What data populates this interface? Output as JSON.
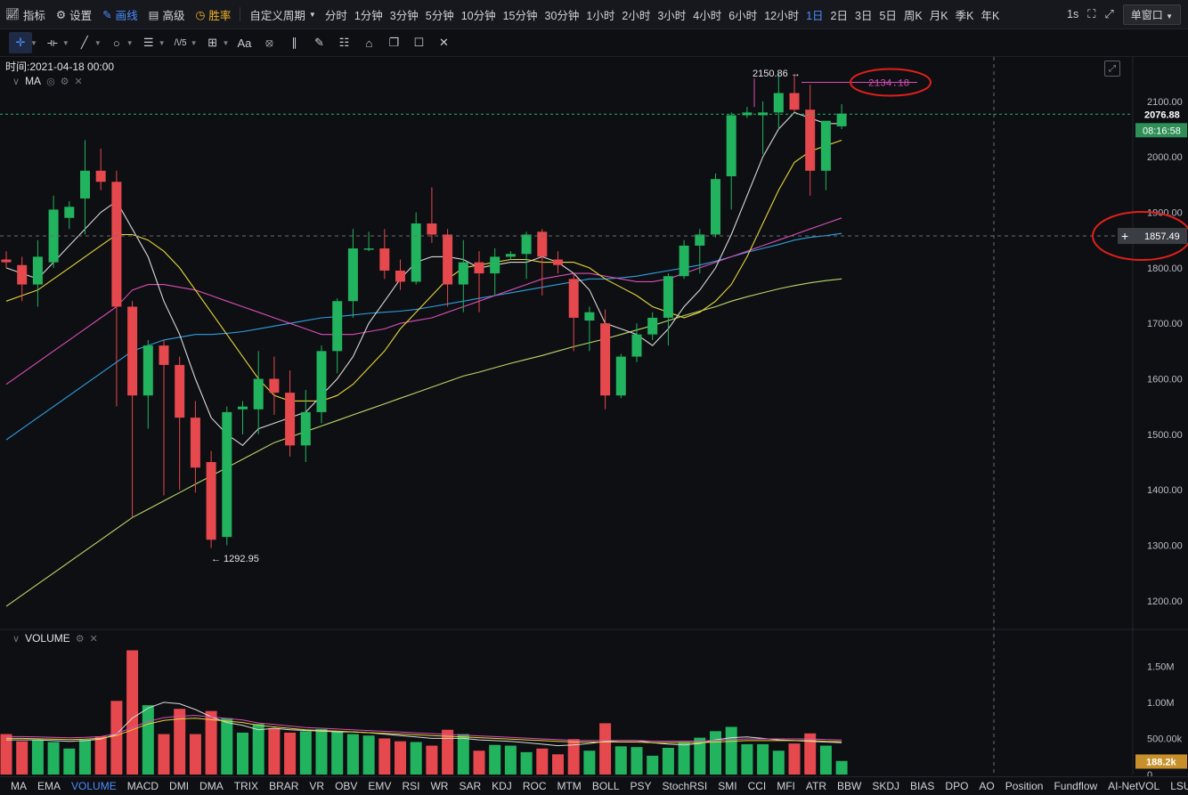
{
  "topbar": {
    "indicators_label": "指标",
    "settings_label": "设置",
    "draw_label": "画线",
    "advanced_label": "高级",
    "winrate_label": "胜率",
    "custom_period_label": "自定义周期",
    "periods": [
      "分时",
      "1分钟",
      "3分钟",
      "5分钟",
      "10分钟",
      "15分钟",
      "30分钟",
      "1小时",
      "2小时",
      "3小时",
      "4小时",
      "6小时",
      "12小时",
      "1日",
      "2日",
      "3日",
      "5日",
      "周K",
      "月K",
      "季K",
      "年K"
    ],
    "active_period": "1日",
    "interval_label": "1s",
    "window_mode_label": "单窗口"
  },
  "toolbar2": {
    "icons": [
      "crosshair-icon",
      "horizontal-line-icon",
      "trend-line-icon",
      "shape-circle-icon",
      "fib-icon",
      "wave-icon",
      "measure-icon",
      "text-icon",
      "magnet-icon",
      "ruler-icon",
      "brush-icon",
      "visibility-icon",
      "lock-icon",
      "copy-icon",
      "screenshot-icon",
      "trash-icon"
    ],
    "text_tool_label": "Aa",
    "wave_tool_label": "/\\/5"
  },
  "main": {
    "time_label": "时间:2021-04-18 00:00",
    "pane_label": "MA",
    "high_label": "2150.86 →",
    "low_label": "← 1292.95",
    "annotation_value": "2134.18",
    "current_price": "2076.88",
    "countdown": "08:16:58",
    "crosshair_price": "1857.49",
    "price_ticks": [
      "2100.00",
      "2000.00",
      "1900.00",
      "1800.00",
      "1700.00",
      "1600.00",
      "1500.00",
      "1400.00",
      "1300.00",
      "1200.00"
    ],
    "colors": {
      "up": "#22b35e",
      "down": "#e5484d",
      "ma5": "#d9d9d9",
      "ma10": "#e8d53a",
      "ma20": "#d94fb5",
      "ma30": "#2fa0e0",
      "ma60": "#b8d96b",
      "annotation": "#e0201a"
    }
  },
  "volume": {
    "pane_label": "VOLUME",
    "ticks": [
      "1.50M",
      "1.00M",
      "500.00k",
      "0"
    ],
    "current_value": "188.2k",
    "current_color": "#c8902a"
  },
  "bottombar": {
    "indicators": [
      "MA",
      "EMA",
      "VOLUME",
      "MACD",
      "DMI",
      "DMA",
      "TRIX",
      "BRAR",
      "VR",
      "OBV",
      "EMV",
      "RSI",
      "WR",
      "SAR",
      "KDJ",
      "ROC",
      "MTM",
      "BOLL",
      "PSY",
      "StochRSI",
      "SMI",
      "CCI",
      "MFI",
      "ATR",
      "BBW",
      "SKDJ",
      "BIAS",
      "DPO",
      "AO",
      "Position",
      "Fundflow",
      "AI-NetVOL",
      "LSUR"
    ],
    "active": "VOLUME"
  },
  "chart_data": {
    "type": "candlestick",
    "ylim": [
      1150,
      2180
    ],
    "volume_ylim": [
      0,
      1800000
    ],
    "candles": [
      {
        "o": 1815,
        "h": 1830,
        "l": 1800,
        "c": 1810,
        "v": 560000
      },
      {
        "o": 1805,
        "h": 1820,
        "l": 1740,
        "c": 1770,
        "v": 460000
      },
      {
        "o": 1770,
        "h": 1850,
        "l": 1730,
        "c": 1820,
        "v": 480000
      },
      {
        "o": 1810,
        "h": 1930,
        "l": 1800,
        "c": 1905,
        "v": 450000
      },
      {
        "o": 1890,
        "h": 1920,
        "l": 1870,
        "c": 1910,
        "v": 360000
      },
      {
        "o": 1925,
        "h": 2030,
        "l": 1860,
        "c": 1975,
        "v": 480000
      },
      {
        "o": 1975,
        "h": 2015,
        "l": 1940,
        "c": 1955,
        "v": 530000
      },
      {
        "o": 1955,
        "h": 1975,
        "l": 1550,
        "c": 1730,
        "v": 1020000
      },
      {
        "o": 1730,
        "h": 1740,
        "l": 1350,
        "c": 1570,
        "v": 1720000
      },
      {
        "o": 1570,
        "h": 1670,
        "l": 1510,
        "c": 1660,
        "v": 960000
      },
      {
        "o": 1660,
        "h": 1670,
        "l": 1390,
        "c": 1625,
        "v": 560000
      },
      {
        "o": 1625,
        "h": 1640,
        "l": 1400,
        "c": 1530,
        "v": 910000
      },
      {
        "o": 1530,
        "h": 1560,
        "l": 1395,
        "c": 1440,
        "v": 560000
      },
      {
        "o": 1450,
        "h": 1470,
        "l": 1295,
        "c": 1310,
        "v": 880000
      },
      {
        "o": 1315,
        "h": 1550,
        "l": 1300,
        "c": 1540,
        "v": 780000
      },
      {
        "o": 1545,
        "h": 1560,
        "l": 1500,
        "c": 1550,
        "v": 580000
      },
      {
        "o": 1545,
        "h": 1650,
        "l": 1500,
        "c": 1600,
        "v": 700000
      },
      {
        "o": 1600,
        "h": 1640,
        "l": 1535,
        "c": 1575,
        "v": 640000
      },
      {
        "o": 1575,
        "h": 1615,
        "l": 1460,
        "c": 1480,
        "v": 580000
      },
      {
        "o": 1480,
        "h": 1580,
        "l": 1450,
        "c": 1540,
        "v": 600000
      },
      {
        "o": 1540,
        "h": 1660,
        "l": 1520,
        "c": 1650,
        "v": 630000
      },
      {
        "o": 1650,
        "h": 1745,
        "l": 1610,
        "c": 1740,
        "v": 590000
      },
      {
        "o": 1740,
        "h": 1870,
        "l": 1710,
        "c": 1835,
        "v": 560000
      },
      {
        "o": 1835,
        "h": 1865,
        "l": 1830,
        "c": 1835,
        "v": 540000
      },
      {
        "o": 1835,
        "h": 1870,
        "l": 1780,
        "c": 1795,
        "v": 500000
      },
      {
        "o": 1795,
        "h": 1815,
        "l": 1760,
        "c": 1775,
        "v": 460000
      },
      {
        "o": 1775,
        "h": 1900,
        "l": 1770,
        "c": 1880,
        "v": 450000
      },
      {
        "o": 1880,
        "h": 1945,
        "l": 1845,
        "c": 1860,
        "v": 400000
      },
      {
        "o": 1860,
        "h": 1870,
        "l": 1730,
        "c": 1770,
        "v": 620000
      },
      {
        "o": 1770,
        "h": 1850,
        "l": 1720,
        "c": 1810,
        "v": 560000
      },
      {
        "o": 1810,
        "h": 1830,
        "l": 1720,
        "c": 1790,
        "v": 330000
      },
      {
        "o": 1790,
        "h": 1835,
        "l": 1750,
        "c": 1820,
        "v": 410000
      },
      {
        "o": 1820,
        "h": 1830,
        "l": 1815,
        "c": 1825,
        "v": 400000
      },
      {
        "o": 1825,
        "h": 1865,
        "l": 1780,
        "c": 1860,
        "v": 310000
      },
      {
        "o": 1865,
        "h": 1870,
        "l": 1750,
        "c": 1820,
        "v": 360000
      },
      {
        "o": 1815,
        "h": 1830,
        "l": 1790,
        "c": 1805,
        "v": 280000
      },
      {
        "o": 1780,
        "h": 1790,
        "l": 1650,
        "c": 1710,
        "v": 490000
      },
      {
        "o": 1705,
        "h": 1730,
        "l": 1650,
        "c": 1720,
        "v": 330000
      },
      {
        "o": 1700,
        "h": 1725,
        "l": 1545,
        "c": 1570,
        "v": 710000
      },
      {
        "o": 1570,
        "h": 1645,
        "l": 1565,
        "c": 1640,
        "v": 390000
      },
      {
        "o": 1640,
        "h": 1700,
        "l": 1630,
        "c": 1680,
        "v": 380000
      },
      {
        "o": 1680,
        "h": 1720,
        "l": 1670,
        "c": 1710,
        "v": 260000
      },
      {
        "o": 1710,
        "h": 1790,
        "l": 1660,
        "c": 1785,
        "v": 370000
      },
      {
        "o": 1785,
        "h": 1850,
        "l": 1780,
        "c": 1840,
        "v": 450000
      },
      {
        "o": 1840,
        "h": 1870,
        "l": 1790,
        "c": 1860,
        "v": 510000
      },
      {
        "o": 1860,
        "h": 1970,
        "l": 1855,
        "c": 1960,
        "v": 600000
      },
      {
        "o": 1965,
        "h": 2080,
        "l": 1905,
        "c": 2075,
        "v": 660000
      },
      {
        "o": 2075,
        "h": 2090,
        "l": 2070,
        "c": 2080,
        "v": 420000
      },
      {
        "o": 2075,
        "h": 2100,
        "l": 2005,
        "c": 2080,
        "v": 420000
      },
      {
        "o": 2080,
        "h": 2150,
        "l": 2050,
        "c": 2115,
        "v": 330000
      },
      {
        "o": 2115,
        "h": 2150,
        "l": 2080,
        "c": 2085,
        "v": 430000
      },
      {
        "o": 2085,
        "h": 2130,
        "l": 1930,
        "c": 1975,
        "v": 570000
      },
      {
        "o": 1975,
        "h": 2065,
        "l": 1940,
        "c": 2065,
        "v": 400000
      },
      {
        "o": 2055,
        "h": 2095,
        "l": 2050,
        "c": 2078,
        "v": 188200
      }
    ],
    "ma5": [
      1800,
      1790,
      1780,
      1810,
      1840,
      1870,
      1900,
      1920,
      1870,
      1820,
      1740,
      1680,
      1600,
      1530,
      1500,
      1480,
      1510,
      1520,
      1530,
      1540,
      1570,
      1600,
      1640,
      1700,
      1740,
      1780,
      1810,
      1820,
      1820,
      1815,
      1800,
      1805,
      1810,
      1810,
      1820,
      1810,
      1790,
      1760,
      1700,
      1690,
      1680,
      1660,
      1690,
      1730,
      1760,
      1800,
      1860,
      1930,
      2000,
      2050,
      2080,
      2070,
      2060,
      2060
    ],
    "ma10": [
      1740,
      1750,
      1760,
      1780,
      1800,
      1820,
      1840,
      1860,
      1860,
      1850,
      1830,
      1800,
      1760,
      1720,
      1680,
      1640,
      1600,
      1570,
      1560,
      1560,
      1560,
      1570,
      1590,
      1620,
      1650,
      1690,
      1720,
      1750,
      1780,
      1800,
      1805,
      1810,
      1815,
      1815,
      1810,
      1810,
      1810,
      1800,
      1780,
      1765,
      1750,
      1730,
      1720,
      1710,
      1720,
      1740,
      1770,
      1820,
      1880,
      1940,
      1990,
      2010,
      2020,
      2030
    ],
    "ma20": [
      1590,
      1610,
      1630,
      1650,
      1670,
      1690,
      1710,
      1730,
      1760,
      1770,
      1770,
      1765,
      1760,
      1750,
      1740,
      1730,
      1720,
      1710,
      1700,
      1690,
      1680,
      1680,
      1680,
      1685,
      1690,
      1700,
      1705,
      1710,
      1720,
      1730,
      1740,
      1750,
      1760,
      1770,
      1780,
      1785,
      1790,
      1790,
      1785,
      1780,
      1775,
      1775,
      1780,
      1790,
      1800,
      1810,
      1820,
      1830,
      1840,
      1850,
      1860,
      1870,
      1880,
      1890
    ],
    "ma30": [
      1490,
      1510,
      1530,
      1550,
      1570,
      1590,
      1610,
      1630,
      1650,
      1660,
      1670,
      1675,
      1680,
      1680,
      1682,
      1685,
      1690,
      1695,
      1700,
      1705,
      1710,
      1712,
      1715,
      1718,
      1720,
      1722,
      1725,
      1730,
      1735,
      1740,
      1745,
      1750,
      1755,
      1760,
      1765,
      1770,
      1775,
      1780,
      1780,
      1782,
      1785,
      1790,
      1795,
      1800,
      1805,
      1812,
      1820,
      1828,
      1835,
      1842,
      1850,
      1855,
      1858,
      1862
    ],
    "ma60": [
      1190,
      1210,
      1230,
      1250,
      1270,
      1290,
      1310,
      1330,
      1350,
      1365,
      1380,
      1395,
      1410,
      1425,
      1440,
      1455,
      1470,
      1485,
      1495,
      1505,
      1515,
      1525,
      1535,
      1545,
      1555,
      1565,
      1575,
      1585,
      1595,
      1605,
      1612,
      1620,
      1628,
      1635,
      1642,
      1650,
      1658,
      1665,
      1672,
      1680,
      1688,
      1696,
      1705,
      1714,
      1722,
      1730,
      1740,
      1748,
      1755,
      1762,
      1768,
      1773,
      1777,
      1780
    ],
    "vol_ma5": [
      480000,
      480000,
      480000,
      470000,
      460000,
      470000,
      490000,
      560000,
      780000,
      920000,
      1000000,
      980000,
      900000,
      800000,
      720000,
      680000,
      620000,
      640000,
      620000,
      610000,
      600000,
      590000,
      590000,
      580000,
      560000,
      540000,
      520000,
      500000,
      500000,
      500000,
      480000,
      470000,
      460000,
      440000,
      420000,
      400000,
      410000,
      430000,
      460000,
      470000,
      470000,
      440000,
      420000,
      410000,
      430000,
      480000,
      510000,
      520000,
      500000,
      480000,
      470000,
      460000,
      450000,
      440000
    ],
    "vol_ma10": [
      500000,
      500000,
      495000,
      490000,
      485000,
      490000,
      500000,
      540000,
      620000,
      700000,
      750000,
      770000,
      780000,
      760000,
      740000,
      720000,
      680000,
      660000,
      640000,
      620000,
      610000,
      600000,
      590000,
      580000,
      570000,
      560000,
      550000,
      540000,
      530000,
      520000,
      510000,
      500000,
      490000,
      480000,
      470000,
      460000,
      450000,
      450000,
      450000,
      450000,
      450000,
      440000,
      440000,
      440000,
      440000,
      450000,
      460000,
      470000,
      470000,
      470000,
      470000,
      470000,
      460000,
      455000
    ]
  }
}
